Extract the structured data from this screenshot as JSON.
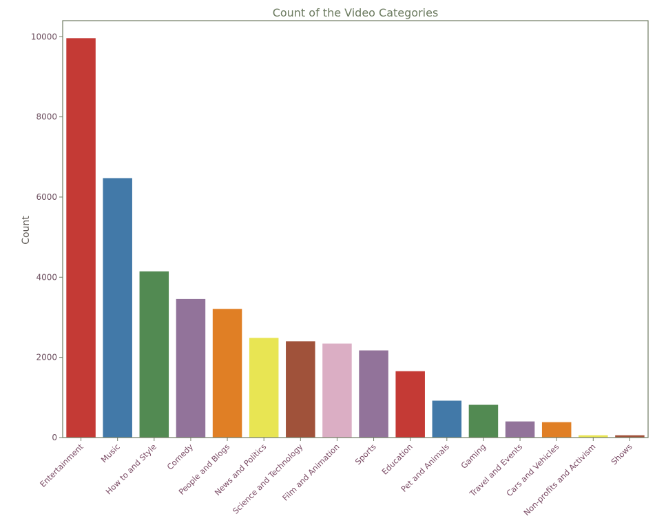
{
  "chart_data": {
    "type": "bar",
    "title": "Count of the Video Categories",
    "xlabel": "",
    "ylabel": "Count",
    "ylim": [
      0,
      10400
    ],
    "yticks": [
      0,
      2000,
      4000,
      6000,
      8000,
      10000
    ],
    "ytick_labels": [
      "0",
      "2000",
      "4000",
      "6000",
      "8000",
      "10000"
    ],
    "grid": false,
    "categories": [
      "Entertainment",
      "Music",
      "How to and Style",
      "Comedy",
      "People and Blogs",
      "News and Politics",
      "Science and Technology",
      "Film and Animation",
      "Sports",
      "Education",
      "Pet and Animals",
      "Gaming",
      "Travel and Events",
      "Cars and Vehicles",
      "Non-profits and Activism",
      "Shows"
    ],
    "values": [
      9964,
      6472,
      4146,
      3457,
      3210,
      2487,
      2401,
      2345,
      2174,
      1656,
      920,
      817,
      402,
      384,
      57,
      57
    ],
    "colors": [
      "#c43a35",
      "#4279a8",
      "#528a52",
      "#92739a",
      "#e07f25",
      "#e8e553",
      "#a0523a",
      "#dbaec4",
      "#92739a",
      "#c43a35",
      "#4279a8",
      "#528a52",
      "#92739a",
      "#e07f25",
      "#e8e553",
      "#a0523a"
    ]
  }
}
